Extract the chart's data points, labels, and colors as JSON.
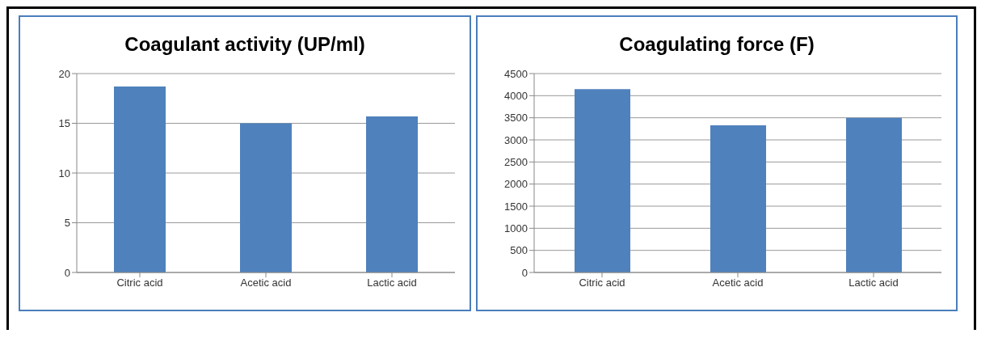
{
  "chart_data": [
    {
      "type": "bar",
      "title": "Coagulant activity (UP/ml)",
      "categories": [
        "Citric acid",
        "Acetic acid",
        "Lactic acid"
      ],
      "values": [
        18.7,
        15.0,
        15.7
      ],
      "color": "#4f81bd",
      "ylim": [
        0,
        20
      ],
      "yticks": [
        0,
        5,
        10,
        15,
        20
      ],
      "grid": "y"
    },
    {
      "type": "bar",
      "title": "Coagulating force (F)",
      "categories": [
        "Citric acid",
        "Acetic acid",
        "Lactic acid"
      ],
      "values": [
        4150,
        3330,
        3500
      ],
      "color": "#4f81bd",
      "ylim": [
        0,
        4500
      ],
      "yticks": [
        0,
        500,
        1000,
        1500,
        2000,
        2500,
        3000,
        3500,
        4000,
        4500
      ],
      "grid": "y"
    }
  ]
}
